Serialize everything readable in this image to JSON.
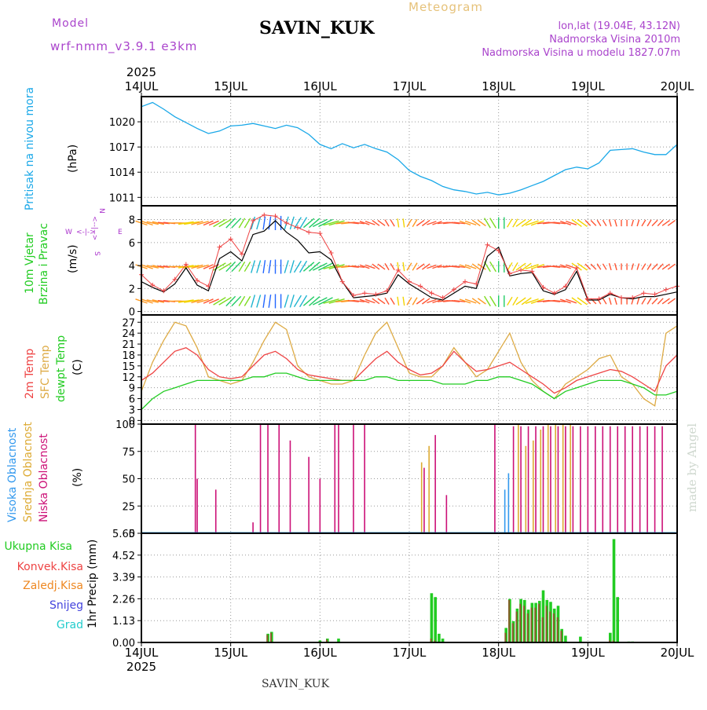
{
  "header": {
    "model_label": "Model",
    "model_name": "wrf-nmm_v3.9.1 e3km",
    "station": "SAVIN_KUK",
    "meteogram": "Meteogram",
    "lonlat": "lon,lat (19.04E, 43.12N)",
    "elevation": "Nadmorska Visina 2010m",
    "model_elevation": "Nadmorska Visina u modelu 1827.07m",
    "watermark": "made by Angel",
    "footer_station": "SAVIN_KUK"
  },
  "colors": {
    "pressure": "#1aa8e8",
    "wind_label": "#22cc22",
    "wind_compass": "#aa33cc",
    "temp2m": "#ee4444",
    "sfc_temp": "#ddaa44",
    "dewpoint": "#22cc22",
    "cloud_high": "#3399ee",
    "cloud_mid": "#ddaa33",
    "cloud_low": "#cc1177",
    "precip_total": "#22cc22",
    "precip_conv": "#ee4444",
    "precip_snow_ice": "#ee8822",
    "precip_snow": "#4444dd",
    "precip_hail": "#22cccc",
    "header_purple": "#aa44cc",
    "header_gold": "#e6c27a"
  },
  "axis": {
    "year": "2025",
    "days": [
      "14JUL",
      "15JUL",
      "16JUL",
      "17JUL",
      "18JUL",
      "19JUL",
      "20JUL"
    ],
    "hours_total": 144
  },
  "chart_data": [
    {
      "type": "line",
      "name": "pressure",
      "label": "Pritisak na nivou mora",
      "unit": "(hPa)",
      "ylim": [
        1010,
        1023
      ],
      "yticks": [
        1011,
        1014,
        1017,
        1020
      ],
      "x_step_hours": 3,
      "values": [
        1021.8,
        1022.3,
        1021.5,
        1020.6,
        1019.9,
        1019.2,
        1018.6,
        1018.9,
        1019.5,
        1019.6,
        1019.8,
        1019.5,
        1019.2,
        1019.6,
        1019.3,
        1018.5,
        1017.3,
        1016.8,
        1017.4,
        1016.9,
        1017.3,
        1016.8,
        1016.4,
        1015.5,
        1014.2,
        1013.5,
        1013.0,
        1012.3,
        1011.9,
        1011.7,
        1011.4,
        1011.6,
        1011.3,
        1011.5,
        1011.9,
        1012.4,
        1012.9,
        1013.6,
        1014.3,
        1014.6,
        1014.4,
        1015.1,
        1016.6,
        1016.7,
        1016.8,
        1016.4,
        1016.1,
        1016.1,
        1017.3
      ]
    },
    {
      "type": "line",
      "name": "wind",
      "label_1": "10m Vjetar",
      "label_2": "Brzina i Pravac",
      "unit": "(m/s)",
      "ylim": [
        -0.3,
        9.2
      ],
      "yticks": [
        0,
        2,
        4,
        6,
        8
      ],
      "compass": {
        "n": "N",
        "s": "S",
        "e": "E",
        "w": "W"
      },
      "x_step_hours": 3,
      "speed": [
        2.6,
        2.1,
        1.7,
        2.4,
        3.8,
        2.3,
        1.8,
        4.6,
        5.2,
        4.4,
        6.7,
        7.0,
        7.9,
        6.9,
        6.2,
        5.1,
        5.2,
        4.5,
        2.6,
        1.2,
        1.3,
        1.4,
        1.6,
        3.2,
        2.4,
        1.8,
        1.2,
        1.0,
        1.6,
        2.2,
        2.0,
        4.8,
        5.6,
        3.1,
        3.3,
        3.4,
        1.8,
        1.5,
        1.9,
        3.5,
        1.0,
        1.0,
        1.5,
        1.2,
        1.1,
        1.3,
        1.3,
        1.5,
        1.7
      ],
      "gust": [
        3.2,
        2.3,
        1.8,
        2.8,
        4.1,
        2.7,
        2.2,
        5.6,
        6.3,
        5.0,
        7.9,
        8.4,
        8.3,
        7.7,
        7.3,
        6.9,
        6.8,
        5.1,
        2.6,
        1.4,
        1.6,
        1.5,
        1.8,
        3.6,
        2.6,
        2.2,
        1.6,
        1.2,
        1.9,
        2.6,
        2.4,
        5.8,
        5.3,
        3.3,
        3.6,
        3.5,
        2.1,
        1.6,
        2.2,
        3.8,
        1.1,
        1.1,
        1.6,
        1.2,
        1.2,
        1.6,
        1.5,
        1.9,
        2.2
      ],
      "arrow_rows": [
        0.9,
        3.9,
        7.7
      ],
      "direction": [
        300,
        290,
        280,
        270,
        255,
        245,
        235,
        225,
        210,
        200,
        190,
        185,
        180,
        190,
        200,
        215,
        230,
        245,
        260,
        280,
        300,
        320,
        340,
        355,
        20,
        40,
        60,
        80,
        100,
        120,
        140,
        160,
        180,
        200,
        220,
        240,
        260,
        280,
        300,
        320,
        330,
        340,
        350,
        0,
        10,
        20,
        30,
        40,
        50
      ]
    },
    {
      "type": "line",
      "name": "temperature",
      "label_2m": "2m Temp",
      "label_sfc": "SFC Temp",
      "label_dew": "dewpt Temp",
      "unit": "(C)",
      "ylim": [
        -1,
        29
      ],
      "yticks": [
        0,
        3,
        6,
        9,
        12,
        15,
        18,
        21,
        24,
        27
      ],
      "x_step_hours": 3,
      "t2m": [
        11,
        13,
        16,
        19,
        20,
        18,
        14,
        12,
        11.5,
        12,
        15,
        18,
        19,
        17,
        14,
        12.5,
        12,
        11.5,
        11,
        11,
        14,
        17,
        19,
        16,
        14,
        12.5,
        13,
        15,
        19,
        16,
        13.5,
        14,
        15,
        16,
        14,
        12,
        10,
        7.5,
        9,
        11,
        12,
        13,
        14,
        13.5,
        12,
        10,
        8,
        15,
        18
      ],
      "t_sfc": [
        8,
        16,
        22,
        27,
        26,
        20,
        12,
        11,
        10,
        11,
        16,
        22,
        27,
        25,
        15,
        12,
        11,
        10,
        10,
        11,
        18,
        24,
        27,
        20,
        13,
        12,
        12,
        15,
        20,
        16,
        12,
        14,
        19,
        24,
        16,
        11,
        8,
        6,
        10,
        12,
        14,
        17,
        18,
        12,
        10,
        6,
        4,
        24,
        26
      ],
      "t_dew": [
        3,
        6,
        8,
        9,
        10,
        11,
        11,
        11,
        11,
        11,
        12,
        12,
        13,
        13,
        12,
        11,
        11,
        11,
        11,
        11,
        11,
        12,
        12,
        11,
        11,
        11,
        11,
        10,
        10,
        10,
        11,
        11,
        12,
        12,
        11,
        10,
        8,
        6,
        8,
        9,
        10,
        11,
        11,
        11,
        10,
        9,
        7,
        7,
        8
      ]
    },
    {
      "type": "bar",
      "name": "clouds",
      "label_high": "Visoka Oblacnost",
      "label_mid": "Srednja Oblacnost",
      "label_low": "Niska Oblacnost",
      "unit": "(%)",
      "ylim": [
        0,
        100
      ],
      "yticks": [
        0,
        25,
        50,
        75,
        100
      ],
      "low_hours": [
        [
          14.5,
          100
        ],
        [
          15,
          50
        ],
        [
          20,
          40
        ],
        [
          30,
          10
        ],
        [
          32,
          100
        ],
        [
          34,
          100
        ],
        [
          37,
          100
        ],
        [
          40,
          85
        ],
        [
          45,
          70
        ],
        [
          48,
          50
        ],
        [
          52,
          100
        ],
        [
          53,
          100
        ],
        [
          57,
          100
        ],
        [
          60,
          100
        ],
        [
          76,
          60
        ],
        [
          79,
          90
        ],
        [
          82,
          35
        ],
        [
          95,
          100
        ],
        [
          100,
          98
        ],
        [
          102,
          98
        ],
        [
          104,
          98
        ],
        [
          106,
          98
        ],
        [
          108,
          98
        ],
        [
          110,
          98
        ],
        [
          112,
          98
        ],
        [
          114,
          98
        ],
        [
          116,
          98
        ],
        [
          118,
          98
        ],
        [
          120,
          98
        ],
        [
          122,
          98
        ],
        [
          124,
          98
        ],
        [
          126,
          98
        ],
        [
          128,
          98
        ],
        [
          130,
          98
        ],
        [
          132,
          98
        ],
        [
          134,
          98
        ],
        [
          136,
          98
        ],
        [
          138,
          98
        ],
        [
          140,
          98
        ]
      ],
      "mid_hours": [
        [
          75,
          65
        ],
        [
          77,
          80
        ],
        [
          101,
          100
        ],
        [
          103,
          80
        ],
        [
          105,
          85
        ],
        [
          107,
          95
        ],
        [
          109,
          100
        ],
        [
          111,
          100
        ],
        [
          113,
          100
        ],
        [
          115,
          100
        ]
      ],
      "high_hours": [
        [
          98,
          40
        ],
        [
          99,
          55
        ]
      ]
    },
    {
      "type": "bar",
      "name": "precip",
      "labels": [
        "Ukupna Kisa",
        "Konvek.Kisa",
        "Zaledj.Kisa",
        "Snijeg",
        "Grad"
      ],
      "ylabel": "1hr Precip (mm)",
      "ylim": [
        0,
        5.65
      ],
      "yticks": [
        0,
        1.13,
        2.26,
        3.39,
        4.52,
        5.65
      ],
      "total": [
        [
          34,
          0.45
        ],
        [
          35,
          0.55
        ],
        [
          48,
          0.1
        ],
        [
          50,
          0.2
        ],
        [
          53,
          0.2
        ],
        [
          78,
          2.55
        ],
        [
          79,
          2.35
        ],
        [
          80,
          0.45
        ],
        [
          81,
          0.2
        ],
        [
          98,
          0.75
        ],
        [
          99,
          2.25
        ],
        [
          100,
          1.1
        ],
        [
          101,
          1.75
        ],
        [
          102,
          2.25
        ],
        [
          103,
          2.2
        ],
        [
          104,
          1.7
        ],
        [
          105,
          2.05
        ],
        [
          106,
          2.05
        ],
        [
          107,
          2.15
        ],
        [
          108,
          2.7
        ],
        [
          109,
          2.2
        ],
        [
          110,
          2.1
        ],
        [
          111,
          1.75
        ],
        [
          112,
          1.9
        ],
        [
          113,
          0.7
        ],
        [
          114,
          0.35
        ],
        [
          118,
          0.3
        ],
        [
          126,
          0.5
        ],
        [
          127,
          5.35
        ],
        [
          128,
          2.35
        ],
        [
          131,
          0.05
        ],
        [
          132,
          0.05
        ]
      ],
      "convective": [
        [
          34,
          0.4
        ],
        [
          35,
          0.5
        ],
        [
          48,
          0.05
        ],
        [
          50,
          0.15
        ],
        [
          78,
          0.2
        ],
        [
          79,
          0.1
        ],
        [
          98,
          0.5
        ],
        [
          99,
          2.2
        ],
        [
          100,
          1.0
        ],
        [
          101,
          1.6
        ],
        [
          102,
          2.0
        ],
        [
          103,
          1.9
        ],
        [
          104,
          1.5
        ],
        [
          105,
          1.8
        ],
        [
          106,
          1.8
        ],
        [
          107,
          2.0
        ],
        [
          108,
          1.3
        ],
        [
          109,
          1.9
        ],
        [
          110,
          1.6
        ],
        [
          111,
          1.5
        ],
        [
          112,
          1.3
        ],
        [
          113,
          0.6
        ],
        [
          126,
          0.1
        ],
        [
          127,
          0.1
        ]
      ]
    }
  ]
}
